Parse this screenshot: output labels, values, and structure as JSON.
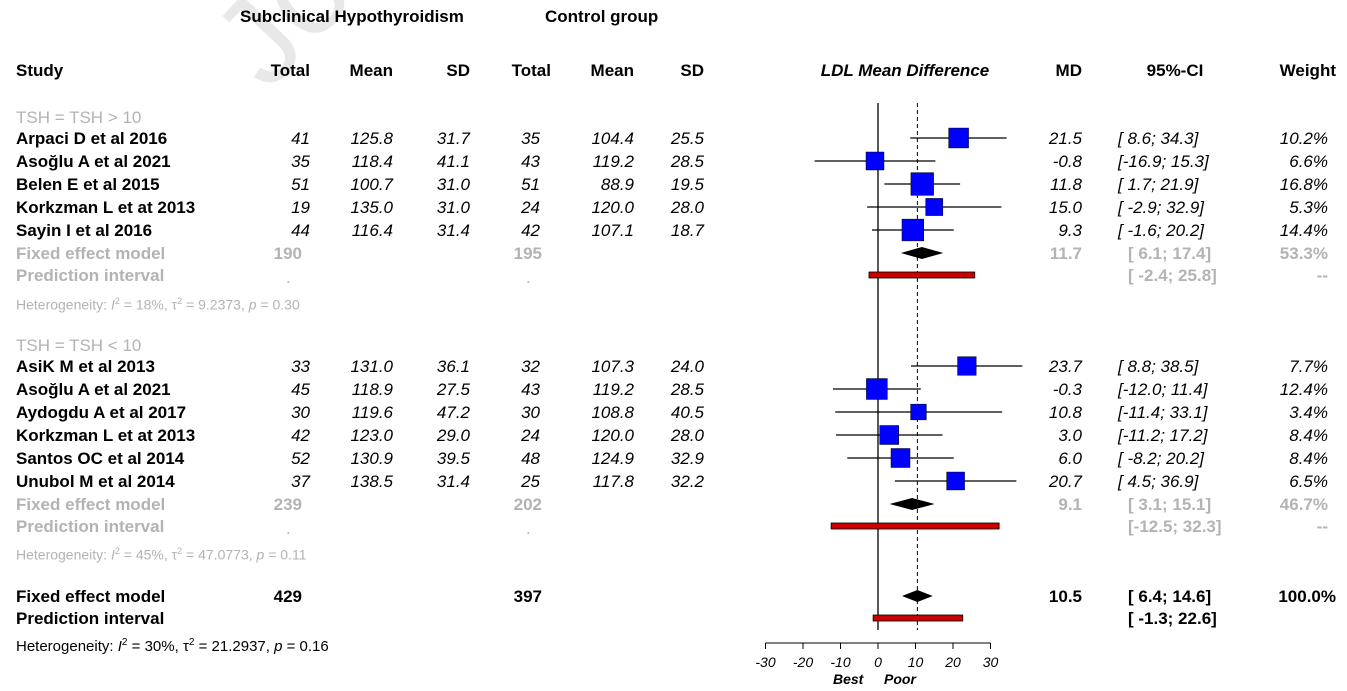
{
  "watermark": "Journal Pre-proof",
  "group_headers": {
    "subclinical": "Subclinical Hypothyroidism",
    "control": "Control group"
  },
  "columns": {
    "study": "Study",
    "total_e": "Total",
    "mean_e": "Mean",
    "sd_e": "SD",
    "total_c": "Total",
    "mean_c": "Mean",
    "sd_c": "SD",
    "plot": "LDL Mean Difference",
    "md": "MD",
    "ci": "95%-CI",
    "weight": "Weight"
  },
  "subgroups": [
    {
      "label": "TSH = TSH > 10",
      "studies": [
        {
          "name": "Arpaci D et al 2016",
          "total_e": "41",
          "mean_e": "125.8",
          "sd_e": "31.7",
          "total_c": "35",
          "mean_c": "104.4",
          "sd_c": "25.5",
          "md": "21.5",
          "ci": "[ 8.6; 34.3]",
          "weight": "10.2%"
        },
        {
          "name": "Asoğlu A et al 2021",
          "total_e": "35",
          "mean_e": "118.4",
          "sd_e": "41.1",
          "total_c": "43",
          "mean_c": "119.2",
          "sd_c": "28.5",
          "md": "-0.8",
          "ci": "[-16.9; 15.3]",
          "weight": "6.6%"
        },
        {
          "name": "Belen E et al  2015",
          "total_e": "51",
          "mean_e": "100.7",
          "sd_e": "31.0",
          "total_c": "51",
          "mean_c": "88.9",
          "sd_c": "19.5",
          "md": "11.8",
          "ci": "[ 1.7; 21.9]",
          "weight": "16.8%"
        },
        {
          "name": "Korkzman L et at 2013",
          "total_e": "19",
          "mean_e": "135.0",
          "sd_e": "31.0",
          "total_c": "24",
          "mean_c": "120.0",
          "sd_c": "28.0",
          "md": "15.0",
          "ci": "[ -2.9; 32.9]",
          "weight": "5.3%"
        },
        {
          "name": "Sayin I et al 2016",
          "total_e": "44",
          "mean_e": "116.4",
          "sd_e": "31.4",
          "total_c": "42",
          "mean_c": "107.1",
          "sd_c": "18.7",
          "md": "9.3",
          "ci": "[ -1.6; 20.2]",
          "weight": "14.4%"
        }
      ],
      "fixed": {
        "label": "Fixed effect model",
        "total_e": "190",
        "total_c": "195",
        "md": "11.7",
        "ci": "[ 6.1; 17.4]",
        "weight": "53.3%"
      },
      "prediction": {
        "label": "Prediction interval",
        "dot_e": ".",
        "dot_c": ".",
        "ci": "[ -2.4; 25.8]",
        "weight": "--"
      },
      "heterogeneity": {
        "prefix": "Heterogeneity: ",
        "i2": "= 18%, ",
        "tau2": " = 9.2373, ",
        "p": " = 0.30"
      }
    },
    {
      "label": "TSH = TSH < 10",
      "studies": [
        {
          "name": "AsiK M et al 2013",
          "total_e": "33",
          "mean_e": "131.0",
          "sd_e": "36.1",
          "total_c": "32",
          "mean_c": "107.3",
          "sd_c": "24.0",
          "md": "23.7",
          "ci": "[ 8.8; 38.5]",
          "weight": "7.7%"
        },
        {
          "name": "Asoğlu A et al 2021",
          "total_e": "45",
          "mean_e": "118.9",
          "sd_e": "27.5",
          "total_c": "43",
          "mean_c": "119.2",
          "sd_c": "28.5",
          "md": "-0.3",
          "ci": "[-12.0; 11.4]",
          "weight": "12.4%"
        },
        {
          "name": "Aydogdu A et al 2017",
          "total_e": "30",
          "mean_e": "119.6",
          "sd_e": "47.2",
          "total_c": "30",
          "mean_c": "108.8",
          "sd_c": "40.5",
          "md": "10.8",
          "ci": "[-11.4; 33.1]",
          "weight": "3.4%"
        },
        {
          "name": "Korkzman L et at 2013",
          "total_e": "42",
          "mean_e": "123.0",
          "sd_e": "29.0",
          "total_c": "24",
          "mean_c": "120.0",
          "sd_c": "28.0",
          "md": "3.0",
          "ci": "[-11.2; 17.2]",
          "weight": "8.4%"
        },
        {
          "name": "Santos OC et al 2014",
          "total_e": "52",
          "mean_e": "130.9",
          "sd_e": "39.5",
          "total_c": "48",
          "mean_c": "124.9",
          "sd_c": "32.9",
          "md": "6.0",
          "ci": "[ -8.2; 20.2]",
          "weight": "8.4%"
        },
        {
          "name": "Unubol M et al 2014",
          "total_e": "37",
          "mean_e": "138.5",
          "sd_e": "31.4",
          "total_c": "25",
          "mean_c": "117.8",
          "sd_c": "32.2",
          "md": "20.7",
          "ci": "[ 4.5; 36.9]",
          "weight": "6.5%"
        }
      ],
      "fixed": {
        "label": "Fixed effect model",
        "total_e": "239",
        "total_c": "202",
        "md": "9.1",
        "ci": "[ 3.1; 15.1]",
        "weight": "46.7%"
      },
      "prediction": {
        "label": "Prediction interval",
        "dot_e": ".",
        "dot_c": ".",
        "ci": "[-12.5; 32.3]",
        "weight": "--"
      },
      "heterogeneity": {
        "prefix": "Heterogeneity: ",
        "i2": "= 45%, ",
        "tau2": " = 47.0773, ",
        "p": " = 0.11"
      }
    }
  ],
  "overall": {
    "fixed": {
      "label": "Fixed effect model",
      "total_e": "429",
      "total_c": "397",
      "md": "10.5",
      "ci": "[ 6.4; 14.6]",
      "weight": "100.0%"
    },
    "prediction": {
      "label": "Prediction interval",
      "ci": "[ -1.3; 22.6]"
    },
    "heterogeneity": {
      "prefix": "Heterogeneity: ",
      "i2": "= 30%, ",
      "tau2": " = 21.2937, ",
      "p": " = 0.16"
    }
  },
  "het_symbols": {
    "i": "I",
    "i_sup": "2",
    "tau": "τ",
    "tau_sup": "2",
    "p": "p",
    "sep": ", "
  },
  "axis": {
    "ticks": [
      "-30",
      "-20",
      "-10",
      "0",
      "10",
      "20",
      "30"
    ],
    "left_label": "Best",
    "right_label": "Poor"
  },
  "colors": {
    "square": "#0000ff",
    "prediction_fill": "#cc0000",
    "grey_text": "#b3b3b3"
  },
  "chart_data": {
    "type": "forest",
    "xlabel": "LDL Mean Difference",
    "xlim": [
      -30,
      30
    ],
    "ticks": [
      -30,
      -20,
      -10,
      0,
      10,
      20,
      30
    ],
    "reference_line": 0,
    "overall_line": 10.5,
    "series": [
      {
        "name": "Arpaci D et al 2016",
        "md": 21.5,
        "lo": 8.6,
        "hi": 34.3,
        "weight": 10.2
      },
      {
        "name": "Asoğlu A et al 2021",
        "md": -0.8,
        "lo": -16.9,
        "hi": 15.3,
        "weight": 6.6
      },
      {
        "name": "Belen E et al  2015",
        "md": 11.8,
        "lo": 1.7,
        "hi": 21.9,
        "weight": 16.8
      },
      {
        "name": "Korkzman L et at 2013",
        "md": 15.0,
        "lo": -2.9,
        "hi": 32.9,
        "weight": 5.3
      },
      {
        "name": "Sayin I et al 2016",
        "md": 9.3,
        "lo": -1.6,
        "hi": 20.2,
        "weight": 14.4
      },
      {
        "name": "AsiK M et al 2013",
        "md": 23.7,
        "lo": 8.8,
        "hi": 38.5,
        "weight": 7.7
      },
      {
        "name": "Asoğlu A et al 2021",
        "md": -0.3,
        "lo": -12.0,
        "hi": 11.4,
        "weight": 12.4
      },
      {
        "name": "Aydogdu A et al 2017",
        "md": 10.8,
        "lo": -11.4,
        "hi": 33.1,
        "weight": 3.4
      },
      {
        "name": "Korkzman L et at 2013",
        "md": 3.0,
        "lo": -11.2,
        "hi": 17.2,
        "weight": 8.4
      },
      {
        "name": "Santos OC et al 2014",
        "md": 6.0,
        "lo": -8.2,
        "hi": 20.2,
        "weight": 8.4
      },
      {
        "name": "Unubol M et al 2014",
        "md": 20.7,
        "lo": 4.5,
        "hi": 36.9,
        "weight": 6.5
      }
    ],
    "diamonds": [
      {
        "name": "Fixed effect model",
        "md": 11.7,
        "lo": 6.1,
        "hi": 17.4
      },
      {
        "name": "Fixed effect model",
        "md": 9.1,
        "lo": 3.1,
        "hi": 15.1
      },
      {
        "name": "Fixed effect model",
        "md": 10.5,
        "lo": 6.4,
        "hi": 14.6
      }
    ],
    "prediction_intervals": [
      {
        "name": "Prediction interval",
        "lo": -2.4,
        "hi": 25.8
      },
      {
        "name": "Prediction interval",
        "lo": -12.5,
        "hi": 32.3
      },
      {
        "name": "Prediction interval",
        "lo": -1.3,
        "hi": 22.6
      }
    ]
  }
}
